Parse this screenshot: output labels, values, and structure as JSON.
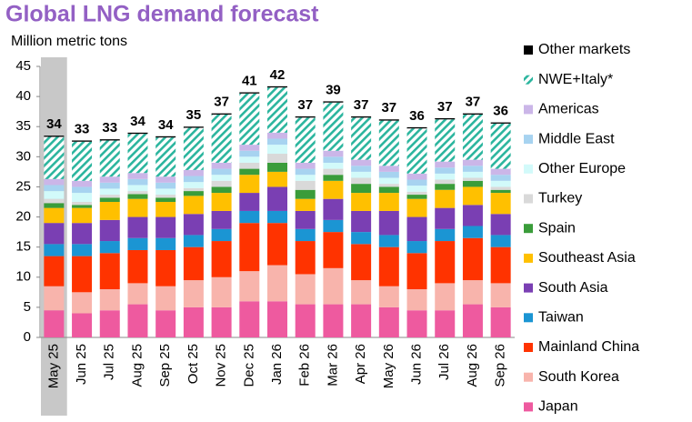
{
  "chart_data": {
    "type": "stacked_bar",
    "title": "Global LNG demand forecast",
    "y_label": "Million metric tons",
    "categories": [
      "May 25",
      "Jun 25",
      "Jul 25",
      "Aug 25",
      "Sep 25",
      "Oct 25",
      "Nov 25",
      "Dec 25",
      "Jan 26",
      "Feb 26",
      "Mar 26",
      "Apr 26",
      "May 26",
      "Jun 26",
      "Jul 26",
      "Aug 26",
      "Sep 26"
    ],
    "totals": [
      34,
      33,
      33,
      34,
      34,
      35,
      37,
      41,
      42,
      37,
      39,
      37,
      37,
      36,
      37,
      37,
      36
    ],
    "highlight_index": 0,
    "ylim": [
      0,
      45
    ],
    "yticks": [
      0,
      5,
      10,
      15,
      20,
      25,
      30,
      35,
      40,
      45
    ],
    "series": [
      {
        "name": "Japan",
        "color": "#ee5a9f",
        "values": [
          4.5,
          4,
          4.5,
          5.5,
          4.5,
          5,
          5,
          6,
          6,
          5.5,
          5.5,
          5.5,
          5,
          4.5,
          4.5,
          5.5,
          5
        ]
      },
      {
        "name": "South Korea",
        "color": "#f8b4ac",
        "values": [
          4,
          3.5,
          3.5,
          3.5,
          4,
          4.5,
          5,
          5,
          6,
          5,
          6,
          4,
          3.5,
          3.5,
          4.5,
          4,
          4
        ]
      },
      {
        "name": "Mainland China",
        "color": "#ff3300",
        "values": [
          5,
          6,
          6,
          5.5,
          6,
          5.5,
          6,
          8,
          7,
          5.5,
          6,
          6,
          6.5,
          6,
          7,
          7,
          6
        ]
      },
      {
        "name": "Taiwan",
        "color": "#1b95d3",
        "values": [
          2,
          2,
          2,
          2,
          2,
          2,
          2,
          2,
          2,
          2,
          2,
          2,
          2,
          2,
          2,
          2,
          2
        ]
      },
      {
        "name": "South Asia",
        "color": "#7a3fb3",
        "values": [
          3.5,
          3.5,
          3.5,
          3.5,
          3.5,
          3.5,
          3,
          3,
          4,
          3,
          3.5,
          3.5,
          4,
          4,
          3.5,
          3.5,
          3.5
        ]
      },
      {
        "name": "Southeast Asia",
        "color": "#ffc000",
        "values": [
          2.5,
          2.5,
          3,
          3,
          2.5,
          3,
          3,
          3,
          2.5,
          2,
          3,
          3,
          3,
          3,
          3,
          3,
          3.5
        ]
      },
      {
        "name": "Spain",
        "color": "#3a9c3a",
        "values": [
          0.8,
          0.5,
          0.7,
          0.8,
          0.7,
          0.8,
          1,
          1,
          1.5,
          1.5,
          1,
          1.5,
          1,
          0.7,
          1,
          1,
          0.5
        ]
      },
      {
        "name": "Turkey",
        "color": "#d9d9d9",
        "values": [
          0.7,
          0.5,
          0.5,
          0.5,
          0.5,
          0.5,
          1,
          1,
          1.5,
          1.5,
          1,
          1,
          0.5,
          0.5,
          0.7,
          0.5,
          0.5
        ]
      },
      {
        "name": "Other Europe",
        "color": "#d2fafa",
        "values": [
          1.3,
          1.5,
          1,
          1,
          1,
          1,
          1,
          1,
          1.5,
          1,
          1,
          1,
          1,
          1,
          1,
          1,
          1
        ]
      },
      {
        "name": "Middle East",
        "color": "#a7d3f0",
        "values": [
          1,
          1,
          1,
          1,
          1,
          1,
          1,
          1,
          1,
          1,
          1,
          1,
          1,
          1,
          1,
          1,
          1
        ]
      },
      {
        "name": "Americas",
        "color": "#cbb6e8",
        "values": [
          1,
          1,
          1,
          1,
          1,
          1,
          1,
          1,
          1,
          1,
          1,
          1,
          1,
          1,
          1,
          1,
          1
        ]
      },
      {
        "name": "NWE+Italy*",
        "color": "#2bb59e",
        "pattern": "hatch",
        "values": [
          7,
          6.5,
          6,
          6.5,
          6.5,
          7,
          8,
          8.5,
          7.5,
          7.5,
          8,
          7,
          7.5,
          7.5,
          7,
          7.5,
          7.5
        ]
      },
      {
        "name": "Other markets",
        "color": "#000000",
        "values": [
          0.2,
          0.2,
          0.2,
          0.2,
          0.2,
          0.2,
          0.2,
          0.2,
          0.2,
          0.2,
          0.2,
          0.2,
          0.2,
          0.2,
          0.2,
          0.2,
          0.2
        ]
      }
    ]
  }
}
